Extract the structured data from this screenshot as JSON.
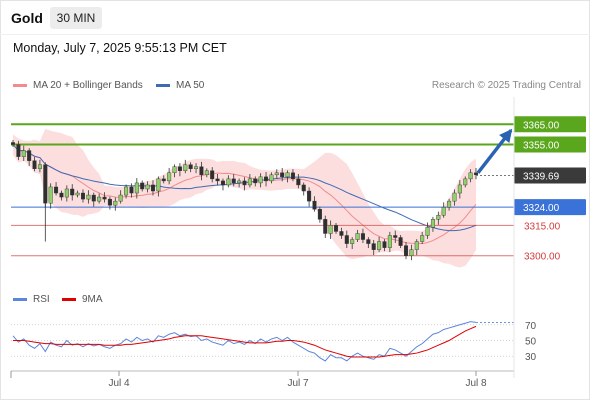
{
  "instrument": "Gold",
  "timeframe": "30 MIN",
  "datetime": "Monday, July 7, 2025 9:55:13 PM CET",
  "credit": "Research © 2025 Trading Central",
  "colors": {
    "bb": "#f28c8c",
    "ma50": "#3f6bb2",
    "green": "#5aa61c",
    "blue": "#3a72d8",
    "red": "#d13c3c",
    "rsi": "#5b86d9",
    "rsi_ma": "#e00000",
    "arrow": "#2b63b3"
  },
  "chart_data": [
    {
      "type": "candlestick",
      "legend": [
        {
          "name": "MA 20 + Bollinger Bands",
          "color": "#f28c8c"
        },
        {
          "name": "MA 50",
          "color": "#3f6bb2"
        }
      ],
      "legend_position": "top-left",
      "x_ticks": [
        "Jul 4",
        "Jul 7",
        "Jul 8"
      ],
      "ylim": [
        3287,
        3378
      ],
      "last_price": "3339.69",
      "levels": [
        {
          "value": 3365.0,
          "label": "3365.00",
          "style": "resistance-box",
          "color": "#5aa61c"
        },
        {
          "value": 3355.0,
          "label": "3355.00",
          "style": "resistance-box",
          "color": "#5aa61c"
        },
        {
          "value": 3324.0,
          "label": "3324.00",
          "style": "pivot-box",
          "color": "#3a72d8"
        },
        {
          "value": 3315.0,
          "label": "3315.00",
          "style": "support",
          "color": "#d13c3c"
        },
        {
          "value": 3300.0,
          "label": "3300.00",
          "style": "support",
          "color": "#d13c3c"
        }
      ],
      "target_arrow": {
        "from": 3341,
        "to": 3362,
        "direction": "up"
      },
      "price_path": [
        3355,
        3349,
        3352,
        3347,
        3343,
        3345,
        3326,
        3334,
        3331,
        3329,
        3333,
        3330,
        3331,
        3328,
        3330,
        3327,
        3329,
        3328,
        3325,
        3327,
        3330,
        3334,
        3331,
        3336,
        3333,
        3335,
        3332,
        3338,
        3337,
        3341,
        3344,
        3342,
        3345,
        3343,
        3344,
        3340,
        3342,
        3338,
        3337,
        3335,
        3338,
        3336,
        3337,
        3335,
        3338,
        3336,
        3339,
        3337,
        3340,
        3341,
        3339,
        3341,
        3338,
        3335,
        3332,
        3327,
        3323,
        3318,
        3311,
        3315,
        3312,
        3310,
        3306,
        3308,
        3311,
        3308,
        3306,
        3303,
        3307,
        3304,
        3310,
        3309,
        3305,
        3300,
        3303,
        3307,
        3310,
        3314,
        3318,
        3320,
        3324,
        3327,
        3331,
        3335,
        3338,
        3341,
        3340
      ]
    },
    {
      "type": "line",
      "series": [
        {
          "name": "RSI",
          "color": "#5b86d9"
        },
        {
          "name": "9MA",
          "color": "#e00000"
        }
      ],
      "yticks": [
        70,
        50,
        30
      ],
      "ylim": [
        15,
        85
      ],
      "rsi": [
        56,
        48,
        52,
        44,
        40,
        46,
        36,
        48,
        44,
        42,
        50,
        44,
        46,
        42,
        46,
        43,
        45,
        42,
        40,
        44,
        46,
        52,
        48,
        54,
        50,
        52,
        48,
        56,
        54,
        58,
        60,
        56,
        58,
        55,
        56,
        50,
        52,
        48,
        46,
        44,
        50,
        46,
        48,
        45,
        50,
        46,
        52,
        48,
        52,
        54,
        50,
        54,
        48,
        44,
        40,
        36,
        34,
        28,
        24,
        32,
        28,
        28,
        24,
        30,
        34,
        30,
        28,
        26,
        32,
        30,
        40,
        38,
        34,
        30,
        36,
        42,
        46,
        52,
        58,
        60,
        64,
        66,
        68,
        70,
        72,
        74,
        73
      ],
      "rsi_9ma": [
        50,
        50,
        50,
        49,
        48,
        47,
        46,
        46,
        45,
        45,
        45,
        45,
        45,
        45,
        45,
        45,
        45,
        44,
        44,
        44,
        44,
        45,
        45,
        46,
        47,
        48,
        49,
        50,
        51,
        52,
        54,
        55,
        56,
        56,
        56,
        56,
        55,
        54,
        53,
        52,
        51,
        50,
        49,
        48,
        47,
        47,
        47,
        47,
        48,
        49,
        49,
        50,
        50,
        49,
        48,
        46,
        44,
        41,
        38,
        36,
        34,
        32,
        30,
        29,
        29,
        29,
        29,
        29,
        29,
        30,
        31,
        32,
        32,
        32,
        33,
        34,
        36,
        38,
        41,
        44,
        47,
        50,
        54,
        58,
        62,
        65,
        68
      ]
    }
  ]
}
